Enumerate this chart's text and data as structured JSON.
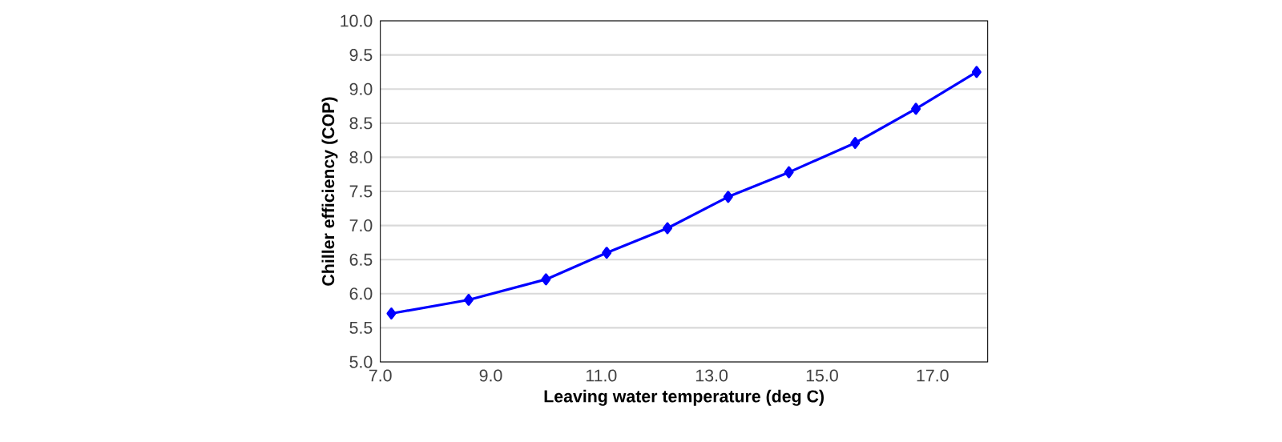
{
  "chart_data": {
    "type": "line",
    "xlabel": "Leaving water temperature (deg C)",
    "ylabel": "Chiller efficiency (COP)",
    "x": [
      7.2,
      8.6,
      10.0,
      11.1,
      12.2,
      13.3,
      14.4,
      15.6,
      16.7,
      17.8
    ],
    "series": [
      {
        "color": "#0000ff",
        "values": [
          5.71,
          5.91,
          6.21,
          6.6,
          6.96,
          7.42,
          7.78,
          8.21,
          8.71,
          9.25
        ]
      }
    ],
    "xlim": [
      7,
      18
    ],
    "xticks": [
      {
        "value": 7,
        "label": "7.0"
      },
      {
        "value": 9,
        "label": "9.0"
      },
      {
        "value": 11,
        "label": "11.0"
      },
      {
        "value": 13,
        "label": "13.0"
      },
      {
        "value": 15,
        "label": "15.0"
      },
      {
        "value": 17,
        "label": "17.0"
      }
    ],
    "ylim": [
      5,
      10
    ],
    "yticks": [
      {
        "value": 5,
        "label": "5.0"
      },
      {
        "value": 5.5,
        "label": "5.5"
      },
      {
        "value": 6,
        "label": "6.0"
      },
      {
        "value": 6.5,
        "label": "6.5"
      },
      {
        "value": 7,
        "label": "7.0"
      },
      {
        "value": 7.5,
        "label": "7.5"
      },
      {
        "value": 8,
        "label": "8.0"
      },
      {
        "value": 8.5,
        "label": "8.5"
      },
      {
        "value": 9,
        "label": "9.0"
      },
      {
        "value": 9.5,
        "label": "9.5"
      },
      {
        "value": 10,
        "label": "10.0"
      }
    ],
    "grid": "y",
    "marker": "diamond",
    "line_style": "solid"
  }
}
